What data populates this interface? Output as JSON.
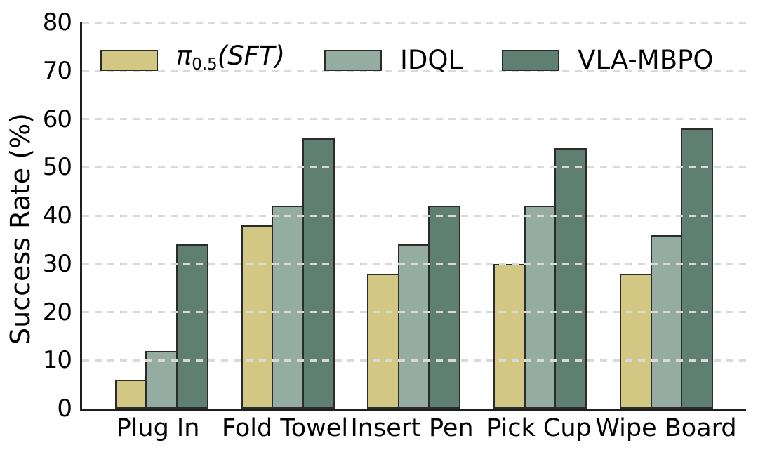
{
  "figure": {
    "background": "#ffffff",
    "text_color": "#000000",
    "axis_color": "#1f1f1f",
    "grid_color": "#d9d9d9",
    "bar_edge_color": "#2b2b2b"
  },
  "chart_data": {
    "type": "bar",
    "title": "",
    "xlabel": "",
    "ylabel": "Success Rate (%)",
    "ylim": [
      0,
      80
    ],
    "yticks": [
      0,
      10,
      20,
      30,
      40,
      50,
      60,
      70,
      80
    ],
    "grid": "horizontal dashed, drawn above bars",
    "legend_position": "top inside, no frame",
    "categories": [
      "Plug In",
      "Fold Towel",
      "Insert Pen",
      "Pick Cup",
      "Wipe Board"
    ],
    "series": [
      {
        "name": "π0.5(SFT)",
        "color": "#d2c783",
        "values": [
          6,
          38,
          28,
          30,
          28
        ],
        "legend_parts": [
          {
            "text": "π",
            "style": "italic"
          },
          {
            "text": "0.5",
            "style": "sub"
          },
          {
            "text": "(SFT)",
            "style": "italic"
          }
        ]
      },
      {
        "name": "IDQL",
        "color": "#95aca3",
        "values": [
          12,
          42,
          34,
          42,
          36
        ],
        "legend_parts": [
          {
            "text": "IDQL",
            "style": "normal"
          }
        ]
      },
      {
        "name": "VLA-MBPO",
        "color": "#5e7f72",
        "values": [
          34,
          56,
          42,
          54,
          58
        ],
        "legend_parts": [
          {
            "text": "VLA-MBPO",
            "style": "normal"
          }
        ]
      }
    ]
  }
}
